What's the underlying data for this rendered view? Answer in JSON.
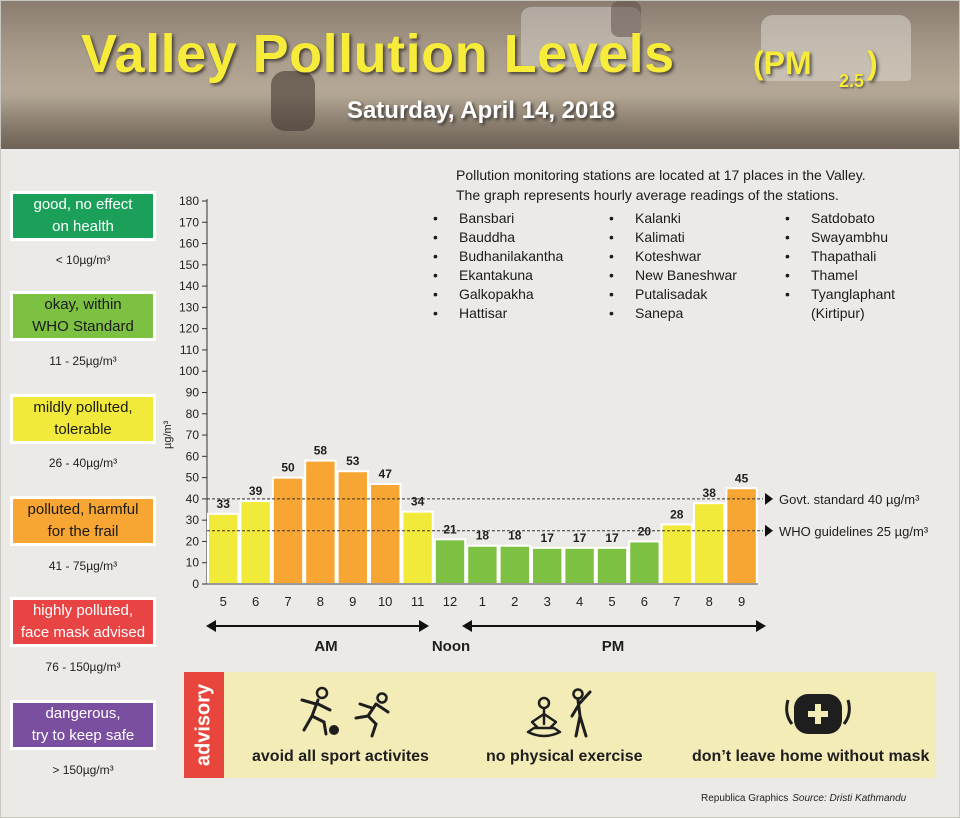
{
  "header": {
    "title": "Valley Pollution Levels",
    "title_pm": "(PM",
    "title_sub": "2.5",
    "title_close": ")",
    "date": "Saturday, April 14, 2018"
  },
  "legend": [
    {
      "label_line1": "good, no effect",
      "label_line2": "on health",
      "range": "< 10µg/m³",
      "color": "#1ba05a",
      "text_color": "#ffffff"
    },
    {
      "label_line1": "okay, within",
      "label_line2": "WHO Standard",
      "range": "11 - 25µg/m³",
      "color": "#7dc142",
      "text_color": "#1a1a1a"
    },
    {
      "label_line1": "mildly polluted,",
      "label_line2": "tolerable",
      "range": "26 - 40µg/m³",
      "color": "#f2ea3a",
      "text_color": "#1a1a1a"
    },
    {
      "label_line1": "polluted, harmful",
      "label_line2": "for the frail",
      "range": "41 - 75µg/m³",
      "color": "#f7a533",
      "text_color": "#1a1a1a"
    },
    {
      "label_line1": "highly polluted,",
      "label_line2": "face mask advised",
      "range": "76 - 150µg/m³",
      "color": "#e94444",
      "text_color": "#ffffff"
    },
    {
      "label_line1": "dangerous,",
      "label_line2": "try to keep safe",
      "range": "> 150µg/m³",
      "color": "#7b4fa0",
      "text_color": "#ffffff"
    }
  ],
  "stations": {
    "intro_line1": "Pollution monitoring stations are located at 17 places in the Valley.",
    "intro_line2": "The graph represents hourly average readings of the stations.",
    "col1": [
      "Bansbari",
      "Bauddha",
      "Budhanilakantha",
      "Ekantakuna",
      "Galkopakha",
      "Hattisar"
    ],
    "col2": [
      "Kalanki",
      "Kalimati",
      "Koteshwar",
      "New Baneshwar",
      "Putalisadak",
      "Sanepa"
    ],
    "col3": [
      "Satdobato",
      "Swayambhu",
      "Thapathali",
      "Thamel",
      "Tyanglaphant"
    ],
    "col3_cont": "(Kirtipur)"
  },
  "chart_data": {
    "type": "bar",
    "categories": [
      "5",
      "6",
      "7",
      "8",
      "9",
      "10",
      "11",
      "12",
      "1",
      "2",
      "3",
      "4",
      "5",
      "6",
      "7",
      "8",
      "9"
    ],
    "values": [
      33,
      39,
      50,
      58,
      53,
      47,
      34,
      21,
      18,
      18,
      17,
      17,
      17,
      20,
      28,
      38,
      45
    ],
    "ylabel": "µg/m³",
    "ylim": [
      0,
      180
    ],
    "yticks": [
      0,
      10,
      20,
      30,
      40,
      50,
      60,
      70,
      80,
      90,
      100,
      110,
      120,
      130,
      140,
      150,
      160,
      170,
      180
    ],
    "period_labels": {
      "am": "AM",
      "noon": "Noon",
      "pm": "PM"
    },
    "reference_lines": [
      {
        "value": 40,
        "label": "Govt. standard 40 µg/m³"
      },
      {
        "value": 25,
        "label": "WHO guidelines 25 µg/m³"
      }
    ],
    "bar_colors": {
      "okay": "#7dc142",
      "mild": "#f2ea3a",
      "polluted": "#f7a533"
    }
  },
  "advisory": {
    "label": "advisory",
    "items": [
      "avoid all sport activites",
      "no physical exercise",
      "don’t leave home without mask"
    ]
  },
  "credit": {
    "publisher": "Republica Graphics",
    "source": "Source: Dristi Kathmandu"
  }
}
